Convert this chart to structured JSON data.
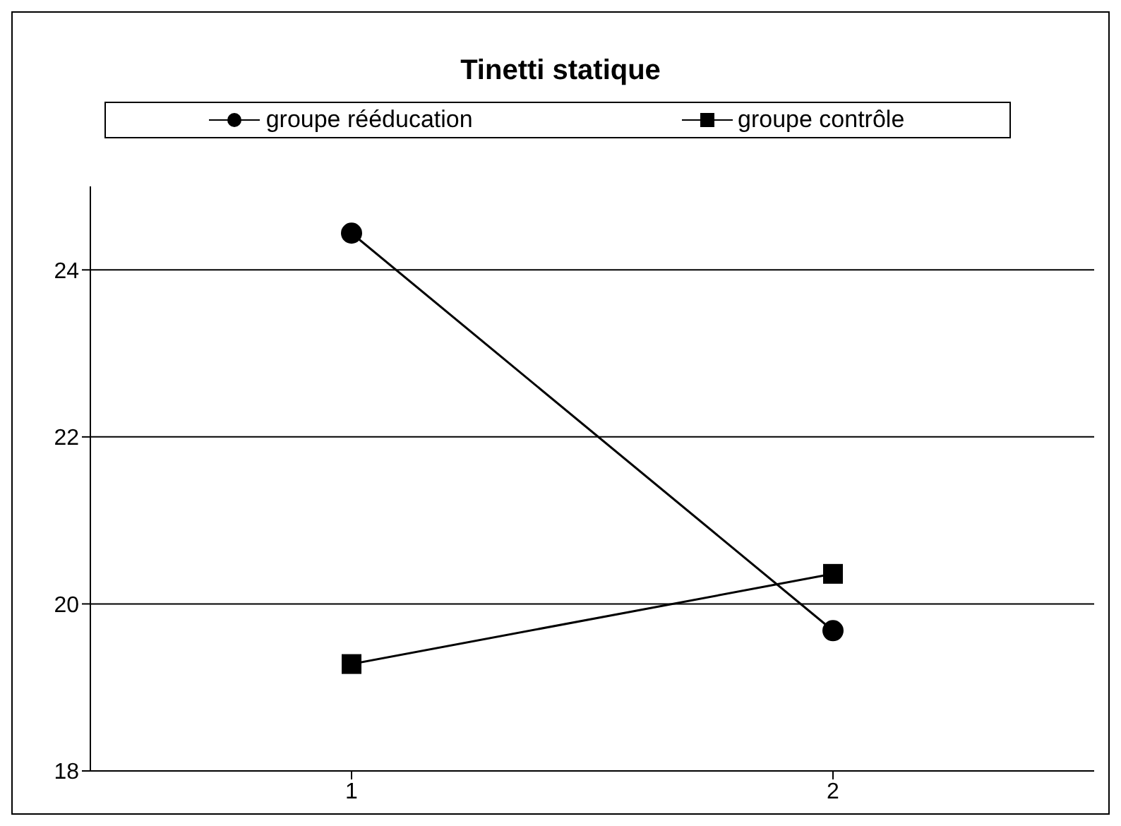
{
  "chart_data": {
    "type": "line",
    "title": "Tinetti statique",
    "categories": [
      "1",
      "2"
    ],
    "series": [
      {
        "name": "groupe rééducation",
        "color": "#000000",
        "values": [
          24.44,
          19.68
        ],
        "marker": "circle"
      },
      {
        "name": "groupe contrôle",
        "color": "#000000",
        "values": [
          19.28,
          20.36
        ],
        "marker": "square"
      }
    ],
    "ylim": [
      18,
      25
    ],
    "yticks": [
      18,
      20,
      22,
      24
    ],
    "grid": "y",
    "legend": "top",
    "line_style": "solid"
  }
}
